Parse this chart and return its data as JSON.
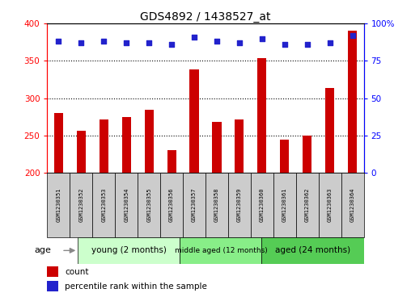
{
  "title": "GDS4892 / 1438527_at",
  "samples": [
    "GSM1230351",
    "GSM1230352",
    "GSM1230353",
    "GSM1230354",
    "GSM1230355",
    "GSM1230356",
    "GSM1230357",
    "GSM1230358",
    "GSM1230359",
    "GSM1230360",
    "GSM1230361",
    "GSM1230362",
    "GSM1230363",
    "GSM1230364"
  ],
  "counts": [
    280,
    256,
    272,
    275,
    284,
    230,
    338,
    268,
    272,
    354,
    244,
    250,
    314,
    390
  ],
  "percentiles": [
    88,
    87,
    88,
    87,
    87,
    86,
    91,
    88,
    87,
    90,
    86,
    86,
    87,
    92
  ],
  "ylim_left": [
    200,
    400
  ],
  "ylim_right": [
    0,
    100
  ],
  "yticks_left": [
    200,
    250,
    300,
    350,
    400
  ],
  "yticks_right": [
    0,
    25,
    50,
    75,
    100
  ],
  "bar_color": "#cc0000",
  "dot_color": "#2222cc",
  "group_info": [
    {
      "label": "young (2 months)",
      "start": 0,
      "end": 4,
      "color": "#ccffcc"
    },
    {
      "label": "middle aged (12 months)",
      "start": 5,
      "end": 8,
      "color": "#77ee77"
    },
    {
      "label": "aged (24 months)",
      "start": 9,
      "end": 13,
      "color": "#44cc44"
    }
  ],
  "sample_box_color": "#cccccc",
  "gridline_color": "#000000",
  "gridline_style": ":",
  "bar_width": 0.4
}
